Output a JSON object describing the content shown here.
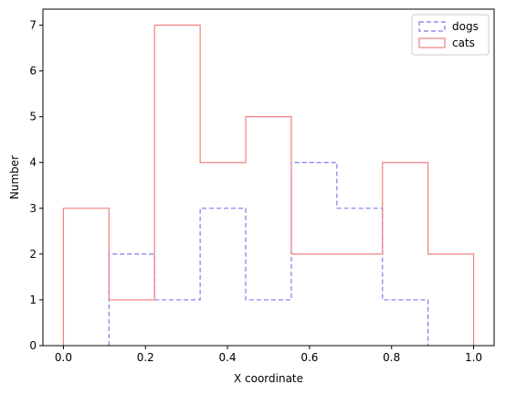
{
  "chart_data": {
    "type": "histogram-step",
    "xlabel": "X coordinate",
    "ylabel": "Number",
    "xlim": [
      -0.05,
      1.05
    ],
    "ylim": [
      0,
      7.35
    ],
    "xticks": [
      0.0,
      0.2,
      0.4,
      0.6,
      0.8,
      1.0
    ],
    "xtick_labels": [
      "0.0",
      "0.2",
      "0.4",
      "0.6",
      "0.8",
      "1.0"
    ],
    "yticks": [
      0,
      1,
      2,
      3,
      4,
      5,
      6,
      7
    ],
    "ytick_labels": [
      "0",
      "1",
      "2",
      "3",
      "4",
      "5",
      "6",
      "7"
    ],
    "grid": false,
    "legend_position": "top-right",
    "series": [
      {
        "name": "dogs",
        "color": "#7b7bf0",
        "line_style": "dashed",
        "bin_edges": [
          0.1111,
          0.2222,
          0.3333,
          0.4444,
          0.5556,
          0.6667,
          0.7778,
          0.8889
        ],
        "counts": [
          2,
          1,
          3,
          1,
          4,
          3,
          1
        ]
      },
      {
        "name": "cats",
        "color": "#f08080",
        "line_style": "solid",
        "bin_edges": [
          0.0,
          0.1111,
          0.2222,
          0.3333,
          0.4444,
          0.5556,
          0.6667,
          0.7778,
          0.8889,
          1.0
        ],
        "counts": [
          3,
          1,
          7,
          4,
          5,
          2,
          2,
          4,
          2
        ]
      }
    ]
  }
}
